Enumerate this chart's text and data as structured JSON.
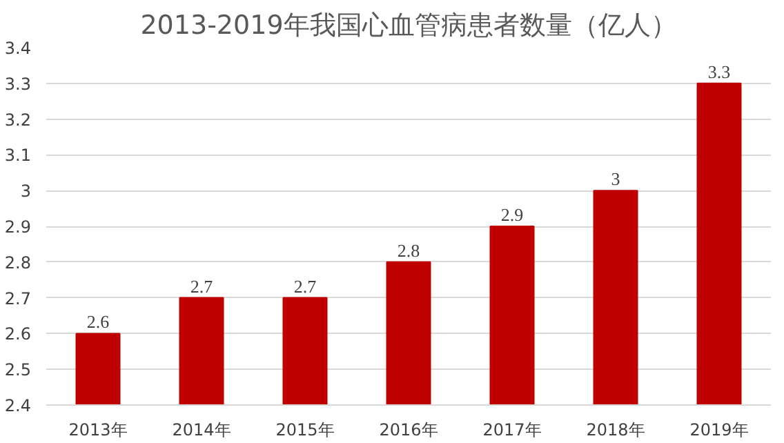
{
  "chart_data": {
    "type": "bar",
    "title": "2013-2019年我国心血管病患者数量（亿人）",
    "categories": [
      "2013年",
      "2014年",
      "2015年",
      "2016年",
      "2017年",
      "2018年",
      "2019年"
    ],
    "values": [
      2.6,
      2.7,
      2.7,
      2.8,
      2.9,
      3,
      3.3
    ],
    "color": "#c00000",
    "ylim": [
      2.4,
      3.4
    ],
    "yticks": [
      2.4,
      2.5,
      2.6,
      2.7,
      2.8,
      2.9,
      3,
      3.1,
      3.2,
      3.3,
      3.4
    ],
    "grid": "y",
    "data_labels": true
  }
}
